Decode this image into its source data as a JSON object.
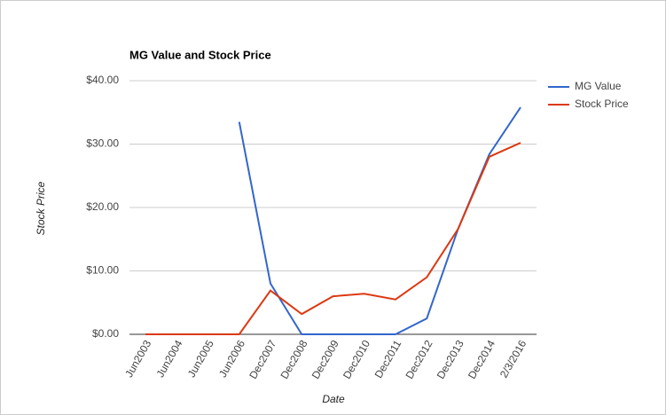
{
  "chart_data": {
    "type": "line",
    "title": "MG Value and Stock Price",
    "x_label": "Date",
    "y_label": "Stock Price",
    "categories": [
      "Jun2003",
      "Jun2004",
      "Jun2005",
      "Jun2006",
      "Dec2007",
      "Dec2008",
      "Dec2009",
      "Dec2010",
      "Dec2011",
      "Dec2012",
      "Dec2013",
      "Dec2014",
      "2/3/2016"
    ],
    "series": [
      {
        "name": "MG Value",
        "color": "#3366cc",
        "values": [
          null,
          null,
          null,
          33.5,
          8.0,
          0,
          0,
          0,
          0,
          2.5,
          16.6,
          28.4,
          35.8
        ]
      },
      {
        "name": "Stock Price",
        "color": "#dc3912",
        "values": [
          0,
          0,
          0,
          0,
          6.9,
          3.2,
          6.0,
          6.4,
          5.5,
          9.0,
          16.6,
          28.0,
          30.2
        ]
      }
    ],
    "ylim": [
      0,
      40
    ],
    "yticks": [
      {
        "value": 0,
        "label": "$0.00"
      },
      {
        "value": 10,
        "label": "$10.00"
      },
      {
        "value": 20,
        "label": "$20.00"
      },
      {
        "value": 30,
        "label": "$30.00"
      },
      {
        "value": 40,
        "label": "$40.00"
      }
    ],
    "grid": true,
    "legend": "right"
  }
}
